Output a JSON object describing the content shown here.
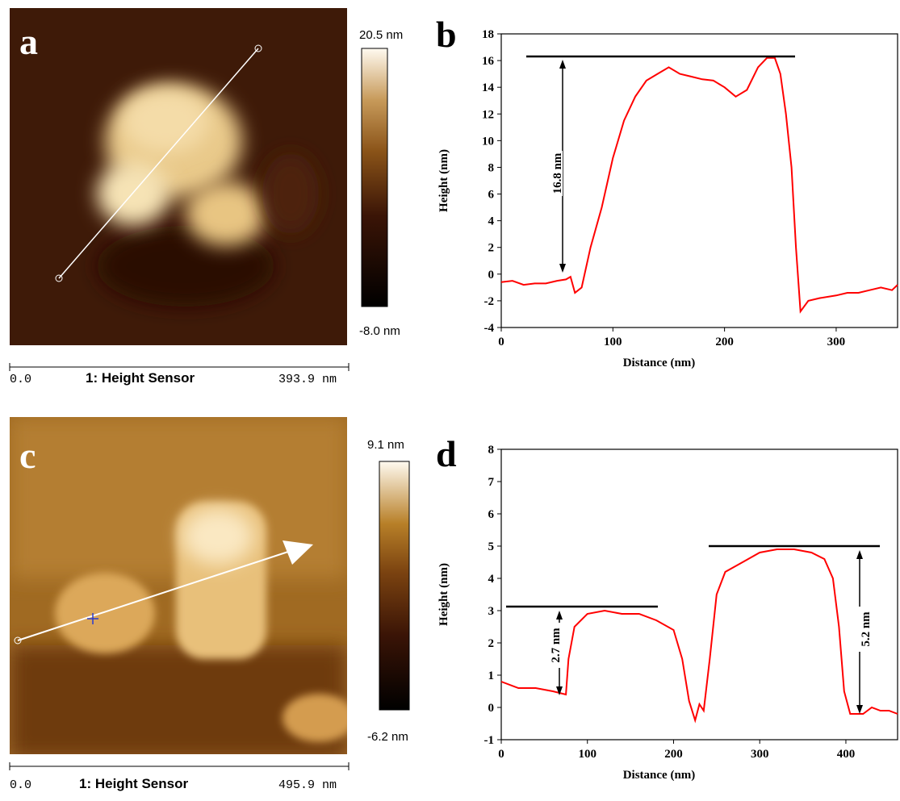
{
  "images": [
    {
      "panel_label": "a",
      "colorbar_max": "20.5 nm",
      "colorbar_min": "-8.0 nm",
      "scale_start": "0.0",
      "channel": "1: Height Sensor",
      "scale_end": "393.9 nm"
    },
    {
      "panel_label": "c",
      "colorbar_max": "9.1 nm",
      "colorbar_min": "-6.2 nm",
      "scale_start": "0.0",
      "channel": "1: Height Sensor",
      "scale_end": "495.9 nm"
    }
  ],
  "chart_data": [
    {
      "type": "line",
      "panel_label": "b",
      "xlabel": "Distance (nm)",
      "ylabel": "Height (nm)",
      "x": [
        0,
        10,
        20,
        30,
        40,
        50,
        58,
        62,
        66,
        72,
        80,
        90,
        100,
        110,
        120,
        130,
        140,
        150,
        160,
        170,
        180,
        190,
        200,
        210,
        220,
        230,
        238,
        245,
        250,
        255,
        260,
        264,
        268,
        275,
        285,
        300,
        310,
        320,
        330,
        340,
        350,
        355
      ],
      "series": [
        {
          "color": "#ff0000",
          "values": [
            -0.6,
            -0.5,
            -0.8,
            -0.7,
            -0.7,
            -0.5,
            -0.4,
            -0.2,
            -1.4,
            -1,
            2,
            5,
            8.7,
            11.5,
            13.3,
            14.5,
            15,
            15.5,
            15,
            14.8,
            14.6,
            14.5,
            14,
            13.3,
            13.8,
            15.5,
            16.2,
            16.2,
            15,
            12,
            8,
            2,
            -2.8,
            -2,
            -1.8,
            -1.6,
            -1.4,
            -1.4,
            -1.2,
            -1,
            -1.2,
            -0.8
          ]
        }
      ],
      "xlim": [
        0,
        355
      ],
      "xticks": [
        0,
        100,
        200,
        300
      ],
      "ylim": [
        -4,
        18
      ],
      "yticks": [
        -4,
        -2,
        0,
        2,
        4,
        6,
        8,
        10,
        12,
        14,
        16,
        18
      ],
      "annotations": [
        "16.8 nm"
      ]
    },
    {
      "type": "line",
      "panel_label": "d",
      "xlabel": "Distance (nm)",
      "ylabel": "Height (nm)",
      "x": [
        0,
        20,
        40,
        60,
        75,
        78,
        85,
        100,
        120,
        140,
        160,
        180,
        200,
        210,
        218,
        225,
        230,
        235,
        242,
        250,
        260,
        280,
        300,
        320,
        340,
        360,
        375,
        385,
        392,
        398,
        405,
        420,
        430,
        440,
        450,
        460
      ],
      "series": [
        {
          "color": "#ff0000",
          "values": [
            0.8,
            0.6,
            0.6,
            0.5,
            0.4,
            1.5,
            2.5,
            2.9,
            3,
            2.9,
            2.9,
            2.7,
            2.4,
            1.5,
            0.2,
            -0.4,
            0.1,
            -0.1,
            1.5,
            3.5,
            4.2,
            4.5,
            4.8,
            4.9,
            4.9,
            4.8,
            4.6,
            4,
            2.5,
            0.5,
            -0.2,
            -0.2,
            0,
            -0.1,
            -0.1,
            -0.2
          ]
        }
      ],
      "xlim": [
        0,
        460
      ],
      "xticks": [
        0,
        100,
        200,
        300,
        400
      ],
      "ylim": [
        -1,
        8
      ],
      "yticks": [
        -1,
        0,
        1,
        2,
        3,
        4,
        5,
        6,
        7,
        8
      ],
      "annotations": [
        "2.7 nm",
        "5.2 nm"
      ]
    }
  ]
}
